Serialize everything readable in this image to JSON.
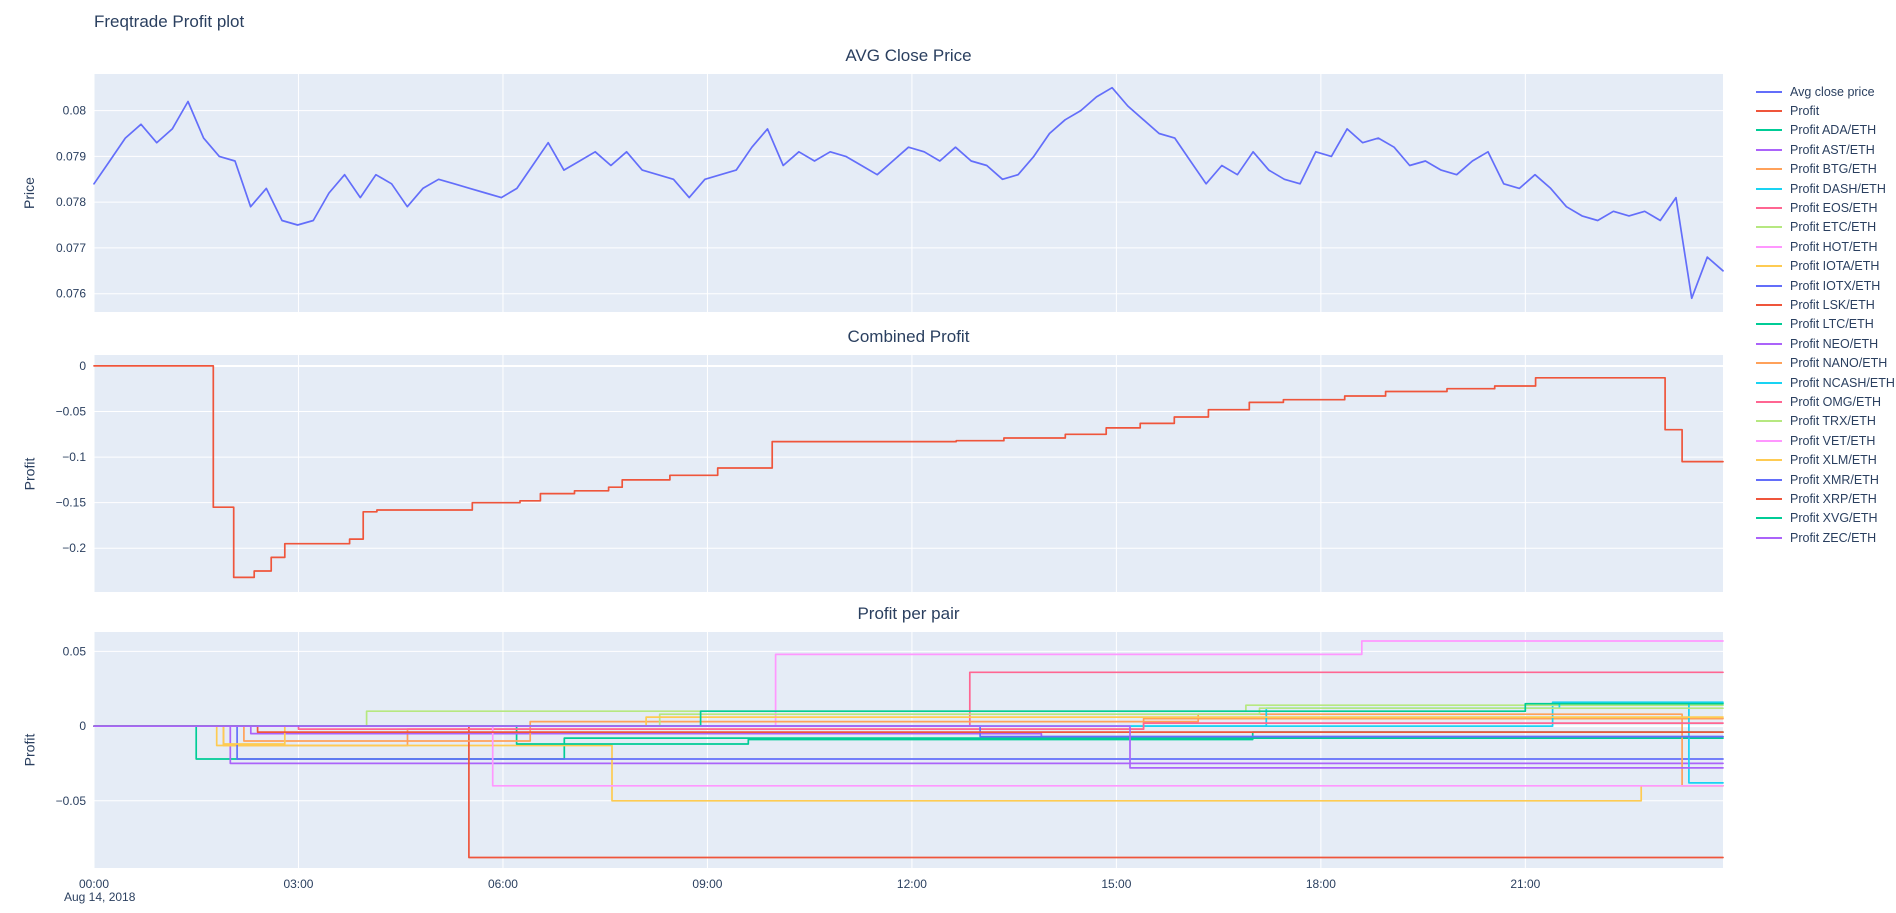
{
  "page": {
    "title": "Freqtrade Profit plot"
  },
  "theme": {
    "plot_bg": "#E5ECF6",
    "grid": "#FFFFFF",
    "text": "#2a3f5f",
    "paper_bg": "#FFFFFF"
  },
  "legend": {
    "items": [
      {
        "label": "Avg close price",
        "color": "#636efa"
      },
      {
        "label": "Profit",
        "color": "#EF553B"
      },
      {
        "label": "Profit ADA/ETH",
        "color": "#00cc96"
      },
      {
        "label": "Profit AST/ETH",
        "color": "#ab63fa"
      },
      {
        "label": "Profit BTG/ETH",
        "color": "#FFA15A"
      },
      {
        "label": "Profit DASH/ETH",
        "color": "#19d3f3"
      },
      {
        "label": "Profit EOS/ETH",
        "color": "#FF6692"
      },
      {
        "label": "Profit ETC/ETH",
        "color": "#B6E880"
      },
      {
        "label": "Profit HOT/ETH",
        "color": "#FF97FF"
      },
      {
        "label": "Profit IOTA/ETH",
        "color": "#FECB52"
      },
      {
        "label": "Profit IOTX/ETH",
        "color": "#636efa"
      },
      {
        "label": "Profit LSK/ETH",
        "color": "#EF553B"
      },
      {
        "label": "Profit LTC/ETH",
        "color": "#00cc96"
      },
      {
        "label": "Profit NEO/ETH",
        "color": "#ab63fa"
      },
      {
        "label": "Profit NANO/ETH",
        "color": "#FFA15A"
      },
      {
        "label": "Profit NCASH/ETH",
        "color": "#19d3f3"
      },
      {
        "label": "Profit OMG/ETH",
        "color": "#FF6692"
      },
      {
        "label": "Profit TRX/ETH",
        "color": "#B6E880"
      },
      {
        "label": "Profit VET/ETH",
        "color": "#FF97FF"
      },
      {
        "label": "Profit XLM/ETH",
        "color": "#FECB52"
      },
      {
        "label": "Profit XMR/ETH",
        "color": "#636efa"
      },
      {
        "label": "Profit XRP/ETH",
        "color": "#EF553B"
      },
      {
        "label": "Profit XVG/ETH",
        "color": "#00cc96"
      },
      {
        "label": "Profit ZEC/ETH",
        "color": "#ab63fa"
      }
    ]
  },
  "chart_data": [
    {
      "type": "line",
      "title": "AVG Close Price",
      "ylabel": "Price",
      "x": {
        "min": 0,
        "max": 23.9,
        "tickvals": [
          0,
          3,
          6,
          9,
          12,
          15,
          18,
          21
        ],
        "ticktext": [
          "00:00",
          "03:00",
          "06:00",
          "09:00",
          "12:00",
          "15:00",
          "18:00",
          "21:00"
        ],
        "show_labels": false
      },
      "y": {
        "min": 0.0756,
        "max": 0.0808,
        "tickvals": [
          0.076,
          0.077,
          0.078,
          0.079,
          0.08
        ],
        "ticktext": [
          "0.076",
          "0.077",
          "0.078",
          "0.079",
          "0.08"
        ]
      },
      "series": [
        {
          "name": "Avg close price",
          "color": "#636efa",
          "shape": "linear",
          "x_even": true,
          "values": [
            0.0784,
            0.0789,
            0.0794,
            0.0797,
            0.0793,
            0.0796,
            0.0802,
            0.0794,
            0.079,
            0.0789,
            0.0779,
            0.0783,
            0.0776,
            0.0775,
            0.0776,
            0.0782,
            0.0786,
            0.0781,
            0.0786,
            0.0784,
            0.0779,
            0.0783,
            0.0785,
            0.0784,
            0.0783,
            0.0782,
            0.0781,
            0.0783,
            0.0788,
            0.0793,
            0.0787,
            0.0789,
            0.0791,
            0.0788,
            0.0791,
            0.0787,
            0.0786,
            0.0785,
            0.0781,
            0.0785,
            0.0786,
            0.0787,
            0.0792,
            0.0796,
            0.0788,
            0.0791,
            0.0789,
            0.0791,
            0.079,
            0.0788,
            0.0786,
            0.0789,
            0.0792,
            0.0791,
            0.0789,
            0.0792,
            0.0789,
            0.0788,
            0.0785,
            0.0786,
            0.079,
            0.0795,
            0.0798,
            0.08,
            0.0803,
            0.0805,
            0.0801,
            0.0798,
            0.0795,
            0.0794,
            0.0789,
            0.0784,
            0.0788,
            0.0786,
            0.0791,
            0.0787,
            0.0785,
            0.0784,
            0.0791,
            0.079,
            0.0796,
            0.0793,
            0.0794,
            0.0792,
            0.0788,
            0.0789,
            0.0787,
            0.0786,
            0.0789,
            0.0791,
            0.0784,
            0.0783,
            0.0786,
            0.0783,
            0.0779,
            0.0777,
            0.0776,
            0.0778,
            0.0777,
            0.0778,
            0.0776,
            0.0781,
            0.0759,
            0.0768,
            0.0765
          ]
        }
      ]
    },
    {
      "type": "line",
      "title": "Combined Profit",
      "ylabel": "Profit",
      "x": {
        "min": 0,
        "max": 23.9,
        "tickvals": [
          0,
          3,
          6,
          9,
          12,
          15,
          18,
          21
        ],
        "ticktext": [
          "00:00",
          "03:00",
          "06:00",
          "09:00",
          "12:00",
          "15:00",
          "18:00",
          "21:00"
        ],
        "show_labels": false
      },
      "y": {
        "min": -0.248,
        "max": 0.012,
        "tickvals": [
          0,
          -0.05,
          -0.1,
          -0.15,
          -0.2
        ],
        "ticktext": [
          "0",
          "−0.05",
          "−0.1",
          "−0.15",
          "−0.2"
        ]
      },
      "series": [
        {
          "name": "Profit",
          "color": "#EF553B",
          "shape": "hv",
          "points": [
            [
              0,
              0
            ],
            [
              1.75,
              -0.155
            ],
            [
              2.05,
              -0.232
            ],
            [
              2.35,
              -0.225
            ],
            [
              2.6,
              -0.21
            ],
            [
              2.8,
              -0.195
            ],
            [
              3.75,
              -0.19
            ],
            [
              3.95,
              -0.16
            ],
            [
              4.15,
              -0.158
            ],
            [
              5.55,
              -0.15
            ],
            [
              6.25,
              -0.148
            ],
            [
              6.55,
              -0.14
            ],
            [
              7.05,
              -0.137
            ],
            [
              7.55,
              -0.133
            ],
            [
              7.75,
              -0.125
            ],
            [
              8.45,
              -0.12
            ],
            [
              9.15,
              -0.112
            ],
            [
              9.95,
              -0.083
            ],
            [
              12.65,
              -0.082
            ],
            [
              13.35,
              -0.079
            ],
            [
              14.25,
              -0.075
            ],
            [
              14.85,
              -0.068
            ],
            [
              15.35,
              -0.063
            ],
            [
              15.85,
              -0.056
            ],
            [
              16.35,
              -0.048
            ],
            [
              16.95,
              -0.04
            ],
            [
              17.45,
              -0.037
            ],
            [
              18.35,
              -0.033
            ],
            [
              18.95,
              -0.028
            ],
            [
              19.85,
              -0.025
            ],
            [
              20.55,
              -0.022
            ],
            [
              21.15,
              -0.013
            ],
            [
              23.05,
              -0.07
            ],
            [
              23.3,
              -0.105
            ],
            [
              23.9,
              -0.105
            ]
          ]
        }
      ]
    },
    {
      "type": "line",
      "title": "Profit per pair",
      "ylabel": "Profit",
      "x": {
        "min": 0,
        "max": 23.9,
        "tickvals": [
          0,
          3,
          6,
          9,
          12,
          15,
          18,
          21
        ],
        "ticktext": [
          "00:00",
          "03:00",
          "06:00",
          "09:00",
          "12:00",
          "15:00",
          "18:00",
          "21:00"
        ],
        "show_labels": true,
        "date_label": "Aug 14, 2018"
      },
      "y": {
        "min": -0.095,
        "max": 0.063,
        "tickvals": [
          0.05,
          0,
          -0.05
        ],
        "ticktext": [
          "0.05",
          "0",
          "−0.05"
        ]
      },
      "series": [
        {
          "name": "Profit ADA/ETH",
          "color": "#00cc96",
          "shape": "hv",
          "points": [
            [
              0,
              0
            ],
            [
              1.5,
              -0.022
            ],
            [
              6.9,
              -0.008
            ],
            [
              23.9,
              -0.008
            ]
          ]
        },
        {
          "name": "Profit AST/ETH",
          "color": "#ab63fa",
          "shape": "hv",
          "points": [
            [
              0,
              0
            ],
            [
              2.0,
              -0.025
            ],
            [
              23.9,
              -0.025
            ]
          ]
        },
        {
          "name": "Profit BTG/ETH",
          "color": "#FFA15A",
          "shape": "hv",
          "points": [
            [
              0,
              0
            ],
            [
              1.9,
              -0.013
            ],
            [
              4.6,
              -0.002
            ],
            [
              15.4,
              0.005
            ],
            [
              23.9,
              0.005
            ]
          ]
        },
        {
          "name": "Profit DASH/ETH",
          "color": "#19d3f3",
          "shape": "hv",
          "points": [
            [
              0,
              0
            ],
            [
              21.4,
              0.016
            ],
            [
              23.9,
              0.016
            ]
          ]
        },
        {
          "name": "Profit EOS/ETH",
          "color": "#FF6692",
          "shape": "hv",
          "points": [
            [
              0,
              0
            ],
            [
              12.85,
              0.036
            ],
            [
              23.9,
              0.036
            ]
          ]
        },
        {
          "name": "Profit ETC/ETH",
          "color": "#B6E880",
          "shape": "hv",
          "points": [
            [
              0,
              0
            ],
            [
              4.0,
              0.01
            ],
            [
              16.9,
              0.014
            ],
            [
              23.9,
              0.014
            ]
          ]
        },
        {
          "name": "Profit HOT/ETH",
          "color": "#FF97FF",
          "shape": "hv",
          "points": [
            [
              0,
              0
            ],
            [
              10.0,
              0.048
            ],
            [
              18.6,
              0.057
            ],
            [
              23.9,
              0.057
            ]
          ]
        },
        {
          "name": "Profit IOTA/ETH",
          "color": "#FECB52",
          "shape": "hv",
          "points": [
            [
              0,
              0
            ],
            [
              1.8,
              -0.013
            ],
            [
              7.6,
              -0.05
            ],
            [
              22.7,
              -0.04
            ],
            [
              23.9,
              -0.04
            ]
          ]
        },
        {
          "name": "Profit IOTX/ETH",
          "color": "#636efa",
          "shape": "hv",
          "points": [
            [
              0,
              0
            ],
            [
              2.1,
              -0.022
            ],
            [
              23.9,
              -0.022
            ]
          ]
        },
        {
          "name": "Profit LSK/ETH",
          "color": "#EF553B",
          "shape": "hv",
          "points": [
            [
              0,
              0
            ],
            [
              5.5,
              -0.088
            ],
            [
              23.9,
              -0.088
            ]
          ]
        },
        {
          "name": "Profit LTC/ETH",
          "color": "#00cc96",
          "shape": "hv",
          "points": [
            [
              0,
              0
            ],
            [
              6.2,
              -0.012
            ],
            [
              9.6,
              -0.009
            ],
            [
              17.0,
              -0.004
            ],
            [
              23.9,
              -0.004
            ]
          ]
        },
        {
          "name": "Profit NEO/ETH",
          "color": "#ab63fa",
          "shape": "hv",
          "points": [
            [
              0,
              0
            ],
            [
              2.3,
              -0.005
            ],
            [
              13.9,
              -0.007
            ],
            [
              23.9,
              -0.007
            ]
          ]
        },
        {
          "name": "Profit NANO/ETH",
          "color": "#FFA15A",
          "shape": "hv",
          "points": [
            [
              0,
              0
            ],
            [
              2.2,
              -0.01
            ],
            [
              6.4,
              0.003
            ],
            [
              16.2,
              0.008
            ],
            [
              23.3,
              -0.04
            ],
            [
              23.9,
              -0.04
            ]
          ]
        },
        {
          "name": "Profit NCASH/ETH",
          "color": "#19d3f3",
          "shape": "hv",
          "points": [
            [
              0,
              0
            ],
            [
              17.2,
              0.012
            ],
            [
              21.5,
              0.015
            ],
            [
              23.4,
              -0.038
            ],
            [
              23.9,
              -0.038
            ]
          ]
        },
        {
          "name": "Profit OMG/ETH",
          "color": "#FF6692",
          "shape": "hv",
          "points": [
            [
              0,
              0
            ],
            [
              3.0,
              -0.002
            ],
            [
              15.4,
              0.002
            ],
            [
              23.9,
              0.002
            ]
          ]
        },
        {
          "name": "Profit TRX/ETH",
          "color": "#B6E880",
          "shape": "hv",
          "points": [
            [
              0,
              0
            ],
            [
              8.3,
              0.008
            ],
            [
              17.1,
              0.012
            ],
            [
              23.9,
              0.012
            ]
          ]
        },
        {
          "name": "Profit VET/ETH",
          "color": "#FF97FF",
          "shape": "hv",
          "points": [
            [
              0,
              0
            ],
            [
              5.85,
              -0.04
            ],
            [
              23.9,
              -0.04
            ]
          ]
        },
        {
          "name": "Profit XLM/ETH",
          "color": "#FECB52",
          "shape": "hv",
          "points": [
            [
              0,
              0
            ],
            [
              1.9,
              -0.012
            ],
            [
              2.8,
              0.0
            ],
            [
              8.1,
              0.006
            ],
            [
              23.9,
              0.006
            ]
          ]
        },
        {
          "name": "Profit XMR/ETH",
          "color": "#636efa",
          "shape": "hv",
          "points": [
            [
              0,
              0
            ],
            [
              13.0,
              -0.007
            ],
            [
              23.9,
              -0.007
            ]
          ]
        },
        {
          "name": "Profit XRP/ETH",
          "color": "#EF553B",
          "shape": "hv",
          "points": [
            [
              0,
              0
            ],
            [
              2.4,
              -0.004
            ],
            [
              23.9,
              -0.004
            ]
          ]
        },
        {
          "name": "Profit XVG/ETH",
          "color": "#00cc96",
          "shape": "hv",
          "points": [
            [
              0,
              0
            ],
            [
              8.9,
              0.01
            ],
            [
              21.0,
              0.015
            ],
            [
              23.9,
              0.015
            ]
          ]
        },
        {
          "name": "Profit ZEC/ETH",
          "color": "#ab63fa",
          "shape": "hv",
          "points": [
            [
              0,
              0
            ],
            [
              15.2,
              -0.028
            ],
            [
              23.9,
              -0.028
            ]
          ]
        }
      ]
    }
  ]
}
